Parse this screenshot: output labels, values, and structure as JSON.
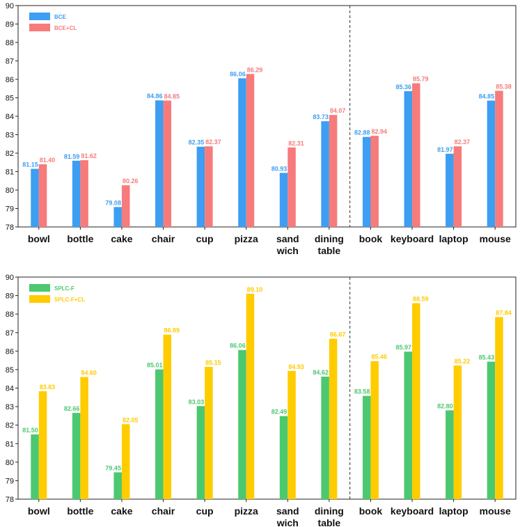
{
  "chart_data": [
    {
      "type": "bar",
      "categories": [
        [
          "bowl"
        ],
        [
          "bottle"
        ],
        [
          "cake"
        ],
        [
          "chair"
        ],
        [
          "cup"
        ],
        [
          "pizza"
        ],
        [
          "sand",
          "wich"
        ],
        [
          "dining",
          "table"
        ],
        [
          "book"
        ],
        [
          "keyboard"
        ],
        [
          "laptop"
        ],
        [
          "mouse"
        ]
      ],
      "series": [
        {
          "name": "BCE",
          "color": "#3d9ef2",
          "values": [
            81.15,
            81.59,
            79.08,
            84.86,
            82.35,
            86.06,
            80.93,
            83.73,
            82.88,
            85.36,
            81.97,
            84.85
          ]
        },
        {
          "name": "BCE+CL",
          "color": "#f77b7b",
          "values": [
            81.4,
            81.62,
            80.26,
            84.85,
            82.37,
            86.29,
            82.31,
            84.07,
            82.94,
            85.79,
            82.37,
            85.38
          ]
        }
      ],
      "ylim": [
        78,
        90
      ],
      "yticks": [
        78,
        79,
        80,
        81,
        82,
        83,
        84,
        85,
        86,
        87,
        88,
        89,
        90
      ],
      "divider_after_index": 7,
      "legend": "top-left"
    },
    {
      "type": "bar",
      "categories": [
        [
          "bowl"
        ],
        [
          "bottle"
        ],
        [
          "cake"
        ],
        [
          "chair"
        ],
        [
          "cup"
        ],
        [
          "pizza"
        ],
        [
          "sand",
          "wich"
        ],
        [
          "dining",
          "table"
        ],
        [
          "book"
        ],
        [
          "keyboard"
        ],
        [
          "laptop"
        ],
        [
          "mouse"
        ]
      ],
      "series": [
        {
          "name": "SPLC-F",
          "color": "#4cc870",
          "values": [
            81.5,
            82.66,
            79.45,
            85.01,
            83.03,
            86.06,
            82.49,
            84.62,
            83.58,
            85.97,
            82.8,
            85.43
          ]
        },
        {
          "name": "SPLC-F+CL",
          "color": "#ffcc00",
          "values": [
            83.83,
            84.6,
            82.05,
            86.89,
            85.15,
            89.1,
            84.93,
            86.67,
            85.46,
            88.59,
            85.22,
            87.84
          ]
        }
      ],
      "ylim": [
        78,
        90
      ],
      "yticks": [
        78,
        79,
        80,
        81,
        82,
        83,
        84,
        85,
        86,
        87,
        88,
        89,
        90
      ],
      "divider_after_index": 7,
      "legend": "top-left"
    }
  ]
}
